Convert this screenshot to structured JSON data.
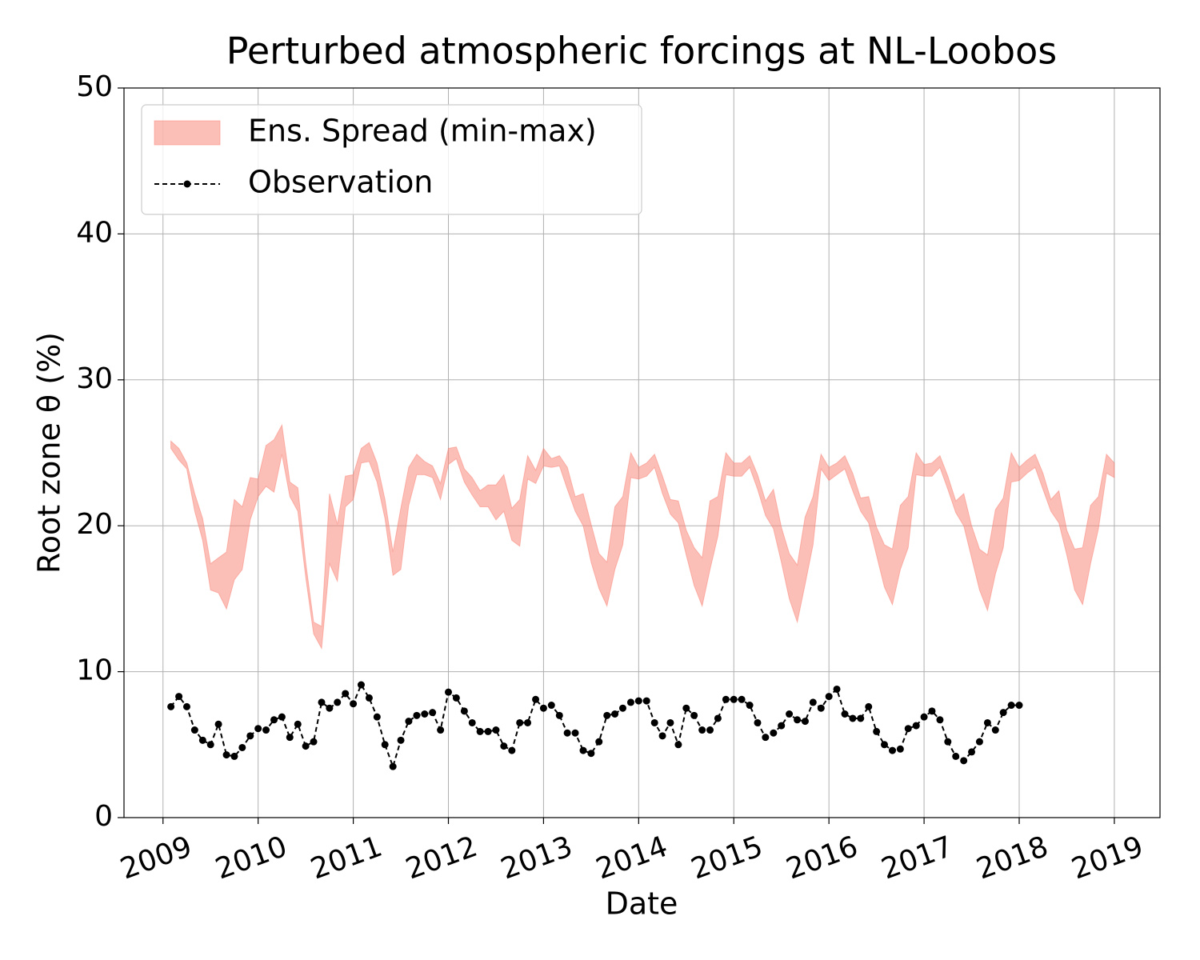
{
  "chart_data": {
    "type": "line",
    "title": "Perturbed atmospheric forcings at NL-Loobos",
    "xlabel": "Date",
    "ylabel": "Root zone θ  (%)",
    "xlim": [
      2008.59,
      2019.48
    ],
    "xticks": [
      2009,
      2010,
      2011,
      2012,
      2013,
      2014,
      2015,
      2016,
      2017,
      2018,
      2019
    ],
    "ylim": [
      0,
      50
    ],
    "yticks": [
      0,
      10,
      20,
      30,
      40,
      50
    ],
    "grid": true,
    "legend": "upper left",
    "x": [
      2009.083,
      2009.167,
      2009.25,
      2009.333,
      2009.417,
      2009.5,
      2009.583,
      2009.667,
      2009.75,
      2009.833,
      2009.917,
      2010.0,
      2010.083,
      2010.167,
      2010.25,
      2010.333,
      2010.417,
      2010.5,
      2010.583,
      2010.667,
      2010.75,
      2010.833,
      2010.917,
      2011.0,
      2011.083,
      2011.167,
      2011.25,
      2011.333,
      2011.417,
      2011.5,
      2011.583,
      2011.667,
      2011.75,
      2011.833,
      2011.917,
      2012.0,
      2012.083,
      2012.167,
      2012.25,
      2012.333,
      2012.417,
      2012.5,
      2012.583,
      2012.667,
      2012.75,
      2012.833,
      2012.917,
      2013.0,
      2013.083,
      2013.167,
      2013.25,
      2013.333,
      2013.417,
      2013.5,
      2013.583,
      2013.667,
      2013.75,
      2013.833,
      2013.917,
      2014.0,
      2014.083,
      2014.167,
      2014.25,
      2014.333,
      2014.417,
      2014.5,
      2014.583,
      2014.667,
      2014.75,
      2014.833,
      2014.917,
      2015.0,
      2015.083,
      2015.167,
      2015.25,
      2015.333,
      2015.417,
      2015.5,
      2015.583,
      2015.667,
      2015.75,
      2015.833,
      2015.917,
      2016.0,
      2016.083,
      2016.167,
      2016.25,
      2016.333,
      2016.417,
      2016.5,
      2016.583,
      2016.667,
      2016.75,
      2016.833,
      2016.917,
      2017.0,
      2017.083,
      2017.167,
      2017.25,
      2017.333,
      2017.417,
      2017.5,
      2017.583,
      2017.667,
      2017.75,
      2017.833,
      2017.917,
      2018.0,
      2018.083,
      2018.167,
      2018.25,
      2018.333,
      2018.417,
      2018.5,
      2018.583,
      2018.667,
      2018.75,
      2018.833,
      2018.917,
      2019.0
    ],
    "series": [
      {
        "name": "Ens. Spread (min-max)",
        "kind": "band",
        "color": "#fa8072",
        "opacity": 0.5,
        "lower": [
          25.3,
          24.5,
          23.9,
          21,
          19,
          15.6,
          15.4,
          14.3,
          16.3,
          17,
          20.4,
          22,
          22.7,
          22.3,
          24.9,
          22,
          21,
          16.5,
          12.6,
          11.6,
          17.4,
          16.2,
          21.3,
          21.8,
          24.3,
          24.4,
          23,
          20.5,
          16.6,
          17,
          21.4,
          23.5,
          23.5,
          23.3,
          21.8,
          24.2,
          24.6,
          23,
          22.1,
          21.3,
          21.3,
          20.4,
          21,
          19,
          18.6,
          23.2,
          22.9,
          24.1,
          24,
          24.1,
          22.5,
          21,
          20,
          17.5,
          15.7,
          14.5,
          17,
          18.7,
          23.3,
          23.2,
          23.4,
          24,
          22.2,
          20.8,
          20.2,
          18,
          15.9,
          14.5,
          17,
          19.3,
          23.5,
          23.4,
          23.4,
          24,
          22.5,
          20.7,
          19.8,
          17.5,
          15,
          13.4,
          16,
          18.7,
          23.9,
          23.1,
          23.5,
          23.9,
          22.4,
          21,
          20.2,
          18,
          15.8,
          14.6,
          17,
          18.5,
          23.5,
          23.4,
          23.4,
          24,
          22.5,
          20.9,
          20,
          17.8,
          15.6,
          14.2,
          16.7,
          18.5,
          23,
          23.1,
          23.6,
          24,
          22.5,
          21,
          20.2,
          18,
          15.6,
          14.6,
          17.4,
          19.8,
          23.6,
          23.3
        ],
        "upper": [
          25.8,
          25.3,
          24.3,
          22.2,
          20.5,
          17.4,
          17.8,
          18.2,
          21.8,
          21.3,
          23.3,
          23.2,
          25.5,
          25.9,
          26.9,
          23,
          22.6,
          17.5,
          13.4,
          13.1,
          22.2,
          20.1,
          23.4,
          23.5,
          25.3,
          25.7,
          24.3,
          21.8,
          18.2,
          21.2,
          24,
          24.9,
          24.4,
          24.1,
          22.9,
          25.3,
          25.4,
          23.9,
          23.3,
          22.4,
          22.8,
          22.8,
          23.5,
          21.2,
          21.8,
          24.8,
          23.8,
          25.3,
          24.6,
          24.8,
          24,
          22,
          22.2,
          20.1,
          18.1,
          17.5,
          21.3,
          22,
          25,
          24,
          24.3,
          24.9,
          23.4,
          21.8,
          21.7,
          19.7,
          18.5,
          17.8,
          21.7,
          22,
          25,
          24.3,
          24.3,
          24.8,
          23.5,
          21.7,
          22.5,
          19.9,
          18.1,
          17.3,
          20.6,
          22,
          24.9,
          24,
          24.3,
          24.8,
          23.6,
          21.9,
          22,
          19.9,
          18.7,
          18.4,
          21.4,
          22,
          25,
          24.2,
          24.3,
          24.8,
          23.4,
          21.7,
          22.2,
          20,
          18.4,
          18,
          21.1,
          21.9,
          25,
          24,
          24.5,
          24.9,
          23.6,
          21.8,
          22.4,
          19.7,
          18.4,
          18.5,
          21.4,
          22,
          24.9,
          24.3
        ]
      },
      {
        "name": "Observation",
        "kind": "line",
        "color": "#000000",
        "values": [
          7.6,
          8.3,
          7.6,
          6.0,
          5.3,
          5.0,
          6.4,
          4.3,
          4.2,
          4.8,
          5.6,
          6.1,
          6.0,
          6.7,
          6.9,
          5.5,
          6.4,
          4.9,
          5.2,
          7.9,
          7.5,
          7.9,
          8.5,
          7.8,
          9.1,
          8.2,
          6.9,
          5.0,
          3.5,
          5.3,
          6.6,
          7.0,
          7.1,
          7.2,
          6.0,
          8.6,
          8.2,
          7.3,
          6.5,
          5.9,
          5.9,
          6.0,
          4.9,
          4.6,
          6.5,
          6.5,
          8.1,
          7.5,
          7.7,
          7.0,
          5.8,
          5.8,
          4.6,
          4.4,
          5.2,
          7.0,
          7.1,
          7.5,
          7.9,
          8.0,
          8.0,
          6.5,
          5.6,
          6.5,
          5.0,
          7.5,
          7.0,
          6.0,
          6.0,
          6.8,
          8.1,
          8.1,
          8.1,
          7.7,
          6.5,
          5.5,
          5.8,
          6.3,
          7.1,
          6.7,
          6.6,
          7.9,
          7.5,
          8.3,
          8.8,
          7.1,
          6.8,
          6.8,
          7.6,
          5.9,
          5.0,
          4.6,
          4.7,
          6.1,
          6.3,
          6.9,
          7.3,
          6.7,
          5.2,
          4.2,
          3.9,
          4.5,
          5.2,
          6.5,
          6.0,
          7.2,
          7.7,
          7.7,
          null,
          null,
          null,
          null,
          null,
          null,
          null,
          null,
          null,
          null,
          null,
          null
        ]
      }
    ]
  }
}
